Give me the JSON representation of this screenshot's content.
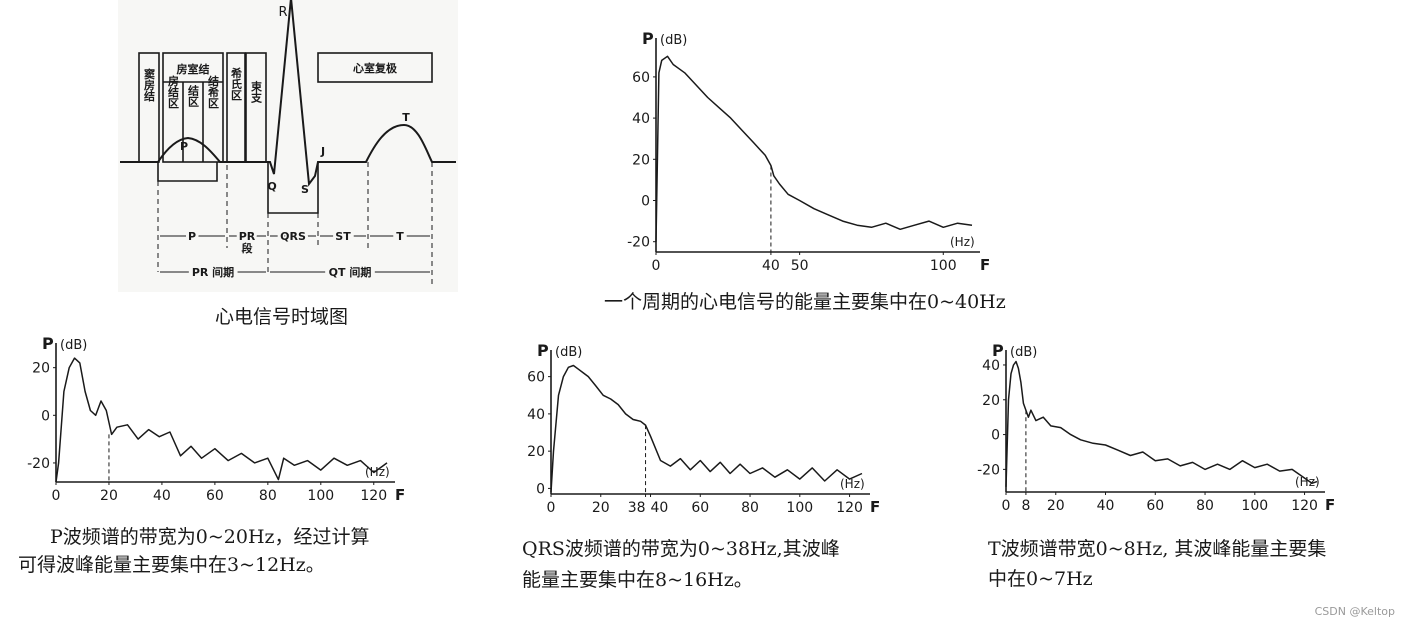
{
  "ecg": {
    "boxes": {
      "sinus": "窦房结",
      "av_node": "房室结",
      "an_zone": "房结区",
      "n_zone": "结区",
      "nh_zone": "结希区",
      "his_zone": "希氏区",
      "bundle": "束支",
      "repol": "心室复极"
    },
    "waves": {
      "p": "P",
      "q": "Q",
      "r": "R",
      "s": "S",
      "j": "J",
      "t": "T"
    },
    "intervals": {
      "p": "P",
      "pr_seg_1": "PR",
      "pr_seg_2": "段",
      "qrs": "QRS",
      "st": "ST",
      "t": "T",
      "pr_interval": "PR 间期",
      "qt_interval": "QT 间期"
    }
  },
  "captions": {
    "ecg": "心电信号时域图",
    "main": "一个周期的心电信号的能量主要集中在0~40Hz",
    "p_line1": "P波频谱的带宽为0~20Hz，经过计算",
    "p_line2": "可得波峰能量主要集中在3~12Hz。",
    "qrs_line1": "QRS波频谱的带宽为0~38Hz,其波峰",
    "qrs_line2": "能量主要集中在8~16Hz。",
    "t_line1": "T波频谱带宽0~8Hz, 其波峰能量主要集",
    "t_line2": "中在0~7Hz"
  },
  "watermark": "CSDN @Keltop",
  "colors": {
    "ink": "#1a1a1a",
    "background": "#ffffff"
  },
  "chart_data": [
    {
      "type": "line",
      "id": "main",
      "ylabel": "P",
      "yunit": "(dB)",
      "xlabel": "F",
      "xunit": "(Hz)",
      "xlim": [
        0,
        110
      ],
      "ylim": [
        -25,
        75
      ],
      "xticks": [
        0,
        40,
        50,
        100
      ],
      "yticks": [
        -20,
        0,
        20,
        40,
        60
      ],
      "cutoff": 40,
      "x": [
        0,
        1,
        2,
        4,
        6,
        8,
        10,
        14,
        18,
        22,
        26,
        30,
        34,
        36,
        38,
        40,
        41,
        43,
        46,
        50,
        55,
        60,
        65,
        70,
        75,
        80,
        85,
        90,
        95,
        100,
        105,
        110
      ],
      "y": [
        -20,
        62,
        68,
        70,
        66,
        64,
        62,
        56,
        50,
        45,
        40,
        34,
        28,
        25,
        22,
        17,
        12,
        8,
        3,
        0,
        -4,
        -7,
        -10,
        -12,
        -13,
        -11,
        -14,
        -12,
        -10,
        -13,
        -11,
        -12
      ]
    },
    {
      "type": "line",
      "id": "p_wave",
      "ylabel": "P",
      "yunit": "(dB)",
      "xlabel": "F",
      "xunit": "(Hz)",
      "xlim": [
        0,
        125
      ],
      "ylim": [
        -28,
        27
      ],
      "xticks": [
        0,
        20,
        40,
        60,
        80,
        100,
        120
      ],
      "yticks": [
        -20,
        0,
        20
      ],
      "cutoff": 20,
      "x": [
        0,
        1,
        3,
        5,
        7,
        9,
        11,
        13,
        15,
        17,
        19,
        21,
        23,
        27,
        31,
        35,
        39,
        43,
        47,
        51,
        55,
        60,
        65,
        70,
        75,
        80,
        84,
        86,
        90,
        95,
        100,
        105,
        110,
        115,
        120,
        125
      ],
      "y": [
        -28,
        -20,
        10,
        20,
        24,
        22,
        10,
        2,
        0,
        6,
        2,
        -8,
        -5,
        -4,
        -10,
        -6,
        -9,
        -7,
        -17,
        -13,
        -18,
        -14,
        -19,
        -16,
        -20,
        -18,
        -27,
        -18,
        -21,
        -19,
        -23,
        -18,
        -21,
        -19,
        -24,
        -20
      ]
    },
    {
      "type": "line",
      "id": "qrs_wave",
      "ylabel": "P",
      "yunit": "(dB)",
      "xlabel": "F",
      "xunit": "(Hz)",
      "xlim": [
        0,
        125
      ],
      "ylim": [
        -3,
        70
      ],
      "xticks": [
        0,
        20,
        38,
        40,
        60,
        80,
        100,
        120
      ],
      "yticks": [
        0,
        20,
        40,
        60
      ],
      "cutoff": 38,
      "x": [
        0,
        1,
        3,
        5,
        7,
        9,
        11,
        13,
        15,
        18,
        21,
        24,
        27,
        30,
        33,
        36,
        38,
        40,
        44,
        48,
        52,
        56,
        60,
        64,
        68,
        72,
        76,
        80,
        85,
        90,
        95,
        100,
        105,
        110,
        115,
        120,
        125
      ],
      "y": [
        -2,
        20,
        50,
        60,
        65,
        66,
        64,
        62,
        60,
        55,
        50,
        48,
        45,
        40,
        37,
        36,
        34,
        28,
        15,
        12,
        16,
        10,
        15,
        9,
        14,
        8,
        13,
        8,
        11,
        6,
        10,
        5,
        11,
        4,
        10,
        5,
        8
      ]
    },
    {
      "type": "line",
      "id": "t_wave",
      "ylabel": "P",
      "yunit": "(dB)",
      "xlabel": "F",
      "xunit": "(Hz)",
      "xlim": [
        0,
        125
      ],
      "ylim": [
        -33,
        44
      ],
      "xticks": [
        0,
        8,
        20,
        40,
        60,
        80,
        100,
        120
      ],
      "yticks": [
        -20,
        0,
        20,
        40
      ],
      "cutoff": 8,
      "x": [
        0,
        1,
        2,
        3,
        4,
        5,
        6,
        7,
        8,
        9,
        10,
        12,
        15,
        18,
        22,
        26,
        30,
        35,
        40,
        45,
        50,
        55,
        60,
        65,
        70,
        75,
        80,
        85,
        90,
        95,
        100,
        105,
        110,
        115,
        120,
        123,
        125
      ],
      "y": [
        -30,
        20,
        35,
        40,
        42,
        38,
        30,
        18,
        14,
        10,
        14,
        8,
        10,
        5,
        4,
        0,
        -3,
        -5,
        -6,
        -9,
        -12,
        -10,
        -15,
        -14,
        -18,
        -16,
        -20,
        -17,
        -20,
        -15,
        -19,
        -17,
        -21,
        -20,
        -25,
        -28,
        -27
      ]
    }
  ]
}
